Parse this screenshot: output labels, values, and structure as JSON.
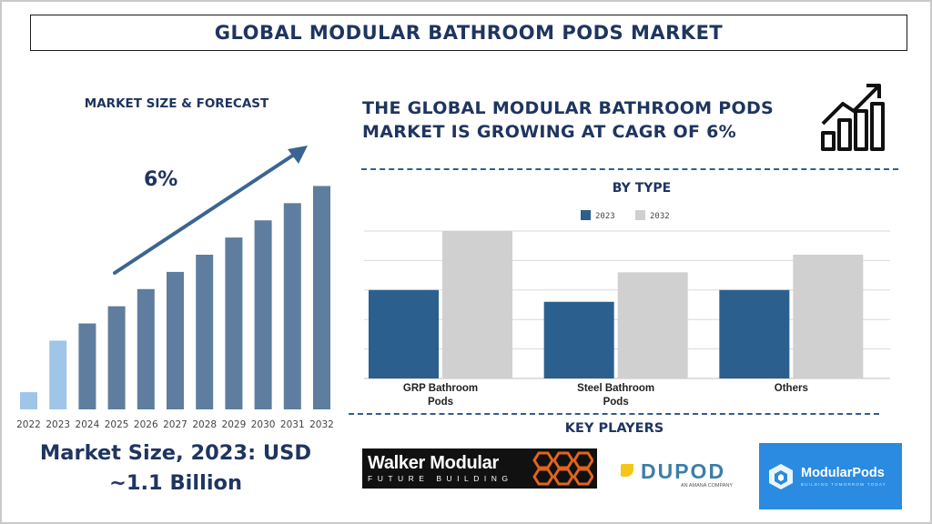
{
  "title": "GLOBAL MODULAR BATHROOM PODS MARKET",
  "left_panel": {
    "heading": "MARKET SIZE & FORECAST",
    "cagr_label": "6%",
    "market_size_line1": "Market Size, 2023: USD",
    "market_size_line2": "~1.1 Billion"
  },
  "headline": {
    "line1": "THE GLOBAL MODULAR BATHROOM PODS",
    "line2": "MARKET IS GROWING AT CAGR OF 6%"
  },
  "by_type_heading": "BY TYPE",
  "key_players_heading": "KEY PLAYERS",
  "logos": {
    "walker_main": "Walker Modular",
    "walker_sub": "FUTURE BUILDING",
    "dupod_main": "DUPOD",
    "dupod_sub": "AN AMANA COMPANY",
    "modularpods_main": "ModularPods",
    "modularpods_sub": "BUILDING TOMORROW TODAY"
  },
  "colors": {
    "navy_text": "#1f3560",
    "bar_dark": "#5f7d9e",
    "bar_light": "#9fc5e8",
    "arrow": "#3b6591",
    "type_2023": "#2b5f8e",
    "type_2032": "#d0d0d0",
    "grid": "#d9d9d9"
  },
  "chart_data": [
    {
      "type": "bar",
      "title": "MARKET SIZE & FORECAST",
      "categories": [
        "2022",
        "2023",
        "2024",
        "2025",
        "2026",
        "2027",
        "2028",
        "2029",
        "2030",
        "2031",
        "2032"
      ],
      "values": [
        1.0,
        4.0,
        5.0,
        6.0,
        7.0,
        8.0,
        9.0,
        10.0,
        11.0,
        12.0,
        13.0
      ],
      "highlight": [
        "light",
        "light",
        "dark",
        "dark",
        "dark",
        "dark",
        "dark",
        "dark",
        "dark",
        "dark",
        "dark"
      ],
      "annotation": "6%",
      "ylim": [
        0,
        13.5
      ],
      "grid": false
    },
    {
      "type": "bar",
      "title": "BY TYPE",
      "categories": [
        [
          "GRP Bathroom",
          "Pods"
        ],
        [
          "Steel Bathroom",
          "Pods"
        ],
        [
          "Others"
        ]
      ],
      "series": [
        {
          "name": "2023",
          "values": [
            3.0,
            2.6,
            3.0
          ]
        },
        {
          "name": "2032",
          "values": [
            5.0,
            3.6,
            4.2
          ]
        }
      ],
      "ylim": [
        0,
        5
      ],
      "grid": true,
      "legend": "top-center"
    }
  ]
}
